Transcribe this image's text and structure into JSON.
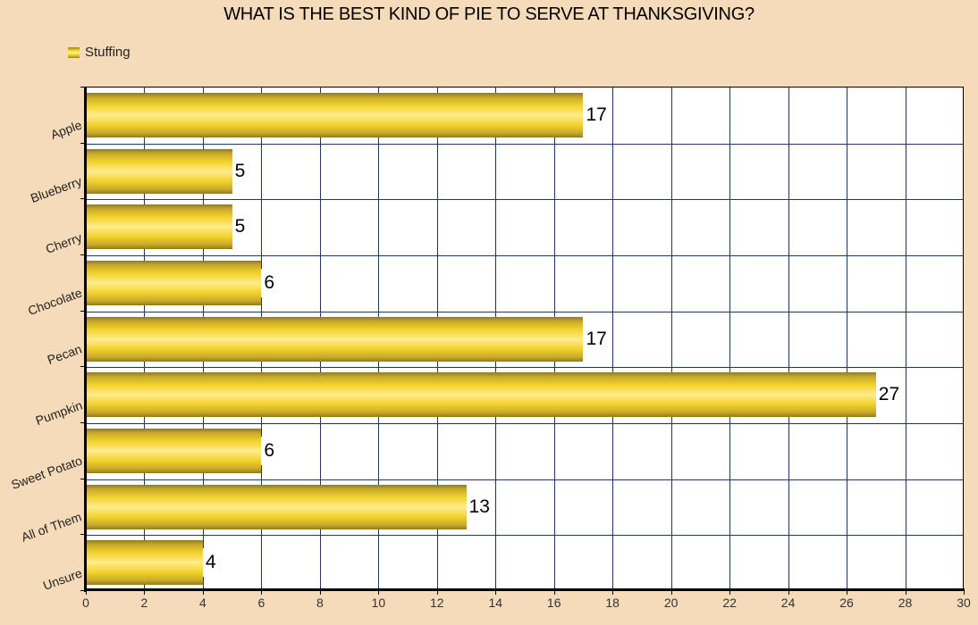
{
  "chart_data": {
    "type": "bar",
    "orientation": "horizontal",
    "title": "WHAT IS THE BEST KIND OF PIE TO SERVE AT THANKSGIVING?",
    "categories": [
      "Apple",
      "Blueberry",
      "Cherry",
      "Chocolate",
      "Pecan",
      "Pumpkin",
      "Sweet Potato",
      "All of Them",
      "Unsure"
    ],
    "series": [
      {
        "name": "Stuffing",
        "values": [
          17,
          5,
          5,
          6,
          17,
          27,
          6,
          13,
          4
        ]
      }
    ],
    "xlabel": "",
    "ylabel": "",
    "xlim": [
      0,
      30
    ],
    "xticks": [
      0,
      2,
      4,
      6,
      8,
      10,
      12,
      14,
      16,
      18,
      20,
      22,
      24,
      26,
      28,
      30
    ],
    "grid": true,
    "legend_position": "top-left",
    "data_labels": true,
    "colors": {
      "bar": "#f2d22a",
      "background": "#f5dbb9",
      "plot_bg": "#ffffff",
      "grid": "#1e3b5e"
    }
  }
}
